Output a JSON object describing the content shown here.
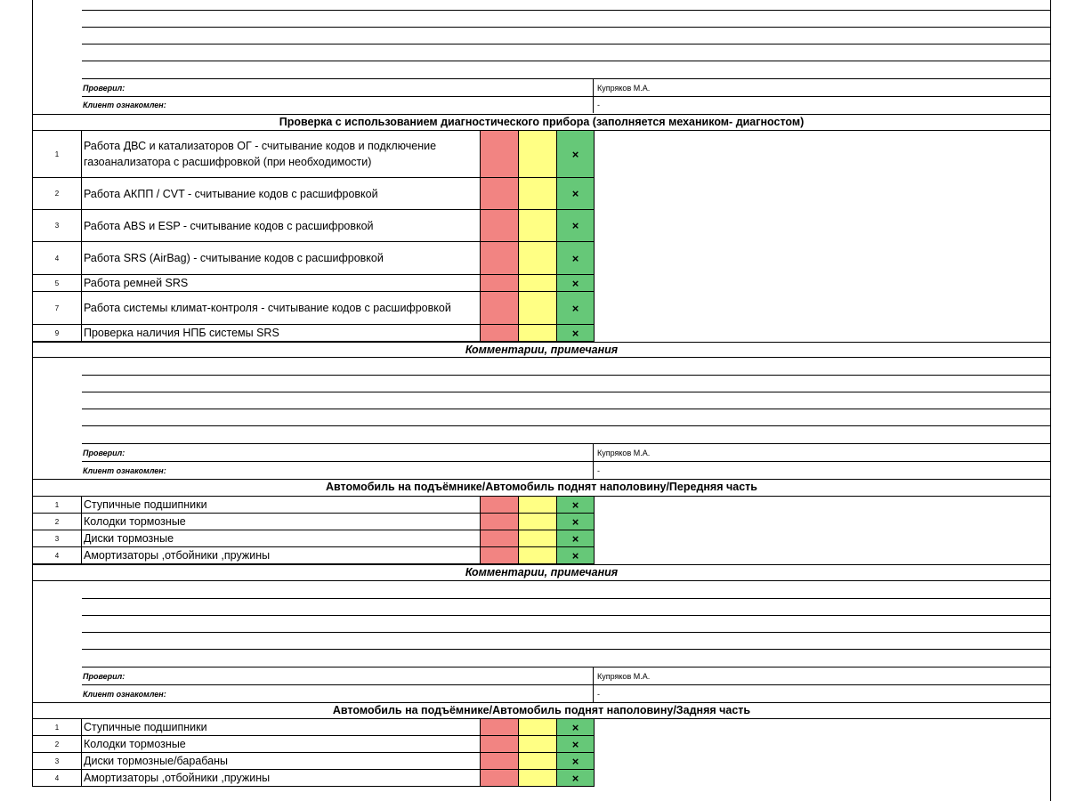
{
  "mark": "×",
  "sections": [
    {
      "signature": {
        "checked_label": "Проверил:",
        "checked_value": "Купряков М.А.",
        "client_label": "Клиент ознакомлен:",
        "client_value": "-"
      }
    },
    {
      "title": "Проверка с использованием диагностического прибора (заполняется механиком- диагностом)",
      "items": [
        {
          "num": "1",
          "name": "Работа ДВС и катализаторов ОГ - считывание кодов и подключение газоанализатора с расшифровкой (при необходимости)"
        },
        {
          "num": "2",
          "name": "Работа АКПП / CVT - считывание кодов с расшифровкой"
        },
        {
          "num": "3",
          "name": "Работа ABS и ESP - считывание кодов с расшифровкой"
        },
        {
          "num": "4",
          "name": "Работа SRS (AirBag) - считывание кодов с расшифровкой"
        },
        {
          "num": "5",
          "name": "Работа ремней SRS"
        },
        {
          "num": "7",
          "name": "Работа системы климат-контроля - считывание кодов с расшифровкой"
        },
        {
          "num": "9",
          "name": "Проверка наличия НПБ системы SRS"
        }
      ],
      "comments_title": "Комментарии, примечания",
      "signature": {
        "checked_label": "Проверил:",
        "checked_value": "Купряков М.А.",
        "client_label": "Клиент ознакомлен:",
        "client_value": "-"
      }
    },
    {
      "title": "Автомобиль на подъёмнике/Автомобиль поднят наполовину/Передняя часть",
      "items": [
        {
          "num": "1",
          "name": "Ступичные подшипники"
        },
        {
          "num": "2",
          "name": "Колодки тормозные"
        },
        {
          "num": "3",
          "name": "Диски тормозные"
        },
        {
          "num": "4",
          "name": "Амортизаторы ,отбойники ,пружины"
        }
      ],
      "comments_title": "Комментарии, примечания",
      "signature": {
        "checked_label": "Проверил:",
        "checked_value": "Купряков М.А.",
        "client_label": "Клиент ознакомлен:",
        "client_value": "-"
      }
    },
    {
      "title": "Автомобиль на подъёмнике/Автомобиль поднят наполовину/Задняя часть",
      "items": [
        {
          "num": "1",
          "name": "Ступичные подшипники"
        },
        {
          "num": "2",
          "name": "Колодки тормозные"
        },
        {
          "num": "3",
          "name": "Диски тормозные/барабаны"
        },
        {
          "num": "4",
          "name": "Амортизаторы ,отбойники ,пружины"
        }
      ]
    }
  ]
}
